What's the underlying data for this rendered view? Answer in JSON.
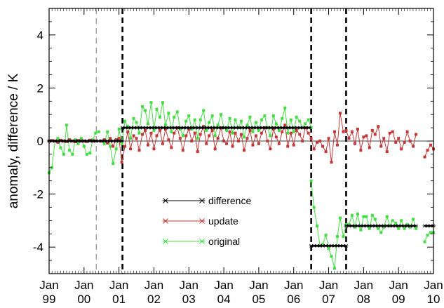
{
  "chart_data": {
    "type": "line",
    "title": "",
    "xlabel": "",
    "ylabel": "anomaly, difference / K",
    "xlim": [
      1999.0,
      2010.0
    ],
    "ylim": [
      -5,
      5
    ],
    "y_ticks": [
      4,
      2,
      0,
      -2,
      -4
    ],
    "y_tick_labels": [
      "4",
      "2",
      "0",
      "-2",
      "-4"
    ],
    "x_ticks": [
      1999,
      2000,
      2001,
      2002,
      2003,
      2004,
      2005,
      2006,
      2007,
      2008,
      2009,
      2010
    ],
    "x_tick_labels": [
      [
        "Jan",
        "99"
      ],
      [
        "Jan",
        "00"
      ],
      [
        "Jan",
        "01"
      ],
      [
        "Jan",
        "02"
      ],
      [
        "Jan",
        "03"
      ],
      [
        "Jan",
        "04"
      ],
      [
        "Jan",
        "05"
      ],
      [
        "Jan",
        "06"
      ],
      [
        "Jan",
        "07"
      ],
      [
        "Jan",
        "08"
      ],
      [
        "Jan",
        "09"
      ],
      [
        "Jan",
        "10"
      ]
    ],
    "grid": false,
    "legend_position": "lower-center",
    "colors": {
      "difference": "#000000",
      "update": "#c03838",
      "original": "#44dd44",
      "break_line": "#000000",
      "dashed_ref": "#999999"
    },
    "vertical_lines": [
      {
        "x": 2000.35,
        "style": "dashed",
        "color": "#999999"
      },
      {
        "x": 2001.1,
        "style": "dashed-bold",
        "color": "#000000"
      },
      {
        "x": 2006.5,
        "style": "dashed-bold",
        "color": "#000000"
      },
      {
        "x": 2007.5,
        "style": "dashed-bold",
        "color": "#000000"
      }
    ],
    "series": [
      {
        "name": "difference",
        "segments": [
          {
            "x": [
              1999.0,
              2001.1
            ],
            "y": [
              0.0,
              0.0
            ]
          },
          {
            "x": [
              2001.1,
              2006.5
            ],
            "y": [
              0.5,
              0.5
            ]
          },
          {
            "x": [
              2006.5,
              2007.5
            ],
            "y": [
              -3.95,
              -3.95
            ]
          },
          {
            "x": [
              2007.5,
              2009.5
            ],
            "y": [
              -3.2,
              -3.2
            ]
          },
          {
            "x": [
              2009.75,
              2010.0
            ],
            "y": [
              -3.2,
              -3.2
            ]
          }
        ]
      },
      {
        "name": "update",
        "segments": [
          {
            "x": [
              1999.0,
              1999.08,
              1999.17,
              1999.25,
              1999.33,
              1999.42,
              1999.5,
              1999.58,
              1999.67,
              1999.75,
              1999.83,
              1999.92,
              2000.0,
              2000.08,
              2000.17,
              2000.25,
              2000.33
            ],
            "y": [
              0.0,
              0.02,
              0.0,
              -0.05,
              0.03,
              0.0,
              -0.02,
              0.05,
              0.0,
              -0.03,
              0.02,
              0.0,
              0.0,
              -0.02,
              0.03,
              0.0,
              0.0
            ]
          },
          {
            "x": [
              2000.5,
              2000.58,
              2000.67,
              2000.75,
              2000.83,
              2000.92,
              2001.0,
              2001.08,
              2001.17,
              2001.25,
              2001.33,
              2001.42,
              2001.5,
              2001.58,
              2001.67,
              2001.75,
              2001.83,
              2001.92,
              2002.0,
              2002.08,
              2002.17,
              2002.25,
              2002.33,
              2002.42,
              2002.5,
              2002.58,
              2002.67,
              2002.75,
              2002.83,
              2002.92,
              2003.0,
              2003.08,
              2003.17,
              2003.25,
              2003.33,
              2003.42,
              2003.5,
              2003.58,
              2003.67,
              2003.75,
              2003.83,
              2003.92,
              2004.0,
              2004.08,
              2004.17,
              2004.25,
              2004.33,
              2004.42,
              2004.5,
              2004.58,
              2004.67,
              2004.75,
              2004.83,
              2004.92,
              2005.0,
              2005.08,
              2005.17,
              2005.25,
              2005.33,
              2005.42,
              2005.5,
              2005.58,
              2005.67,
              2005.75,
              2005.83,
              2005.92,
              2006.0,
              2006.08,
              2006.17,
              2006.25,
              2006.33,
              2006.42,
              2006.5,
              2006.58,
              2006.67,
              2006.75,
              2006.83,
              2006.92,
              2007.0,
              2007.08,
              2007.17,
              2007.25,
              2007.33,
              2007.42
            ],
            "y": [
              0.0,
              0.05,
              -0.08,
              0.1,
              -0.2,
              0.05,
              0.1,
              -0.8,
              -0.2,
              0.35,
              -0.3,
              0.2,
              0.1,
              -0.35,
              0.25,
              0.4,
              -0.15,
              0.3,
              -0.3,
              0.2,
              0.4,
              -0.1,
              0.45,
              0.05,
              -0.25,
              0.3,
              0.5,
              0.1,
              -0.35,
              0.2,
              0.45,
              0.0,
              0.3,
              -0.4,
              0.25,
              0.55,
              -0.1,
              0.2,
              0.4,
              -0.3,
              0.1,
              0.5,
              0.0,
              -0.1,
              0.35,
              -0.2,
              0.3,
              0.0,
              0.25,
              -0.35,
              0.1,
              0.4,
              -0.15,
              0.2,
              -0.1,
              0.3,
              0.5,
              0.0,
              -0.3,
              0.45,
              0.15,
              -0.1,
              0.35,
              0.6,
              -0.2,
              0.3,
              -0.15,
              0.4,
              0.25,
              0.0,
              0.5,
              0.3,
              0.1,
              -0.3,
              -0.05,
              0.0,
              -0.2,
              -0.4,
              0.1,
              -0.8,
              0.35,
              -0.15,
              1.05,
              0.35
            ]
          },
          {
            "x": [
              2007.5,
              2007.58,
              2007.67,
              2007.75,
              2007.83,
              2007.92,
              2008.0,
              2008.08,
              2008.17,
              2008.25,
              2008.33,
              2008.42,
              2008.5,
              2008.58,
              2008.67,
              2008.75,
              2008.83,
              2008.92,
              2009.0,
              2009.08,
              2009.17,
              2009.25,
              2009.33,
              2009.42,
              2009.5
            ],
            "y": [
              0.4,
              0.1,
              0.35,
              -0.1,
              0.45,
              -0.35,
              0.15,
              0.2,
              -0.25,
              0.4,
              0.25,
              0.55,
              -0.2,
              0.1,
              -0.4,
              0.3,
              0.35,
              -0.05,
              0.1,
              -0.3,
              -0.05,
              0.35,
              0.0,
              -0.2,
              0.25
            ]
          },
          {
            "x": [
              2009.75,
              2009.83,
              2009.92,
              2010.0
            ],
            "y": [
              -0.6,
              -0.35,
              -0.15,
              -0.3
            ]
          }
        ]
      },
      {
        "name": "original",
        "segments": [
          {
            "x": [
              1999.0,
              1999.08,
              1999.17,
              1999.25,
              1999.33,
              1999.42,
              1999.5,
              1999.58,
              1999.67,
              1999.75,
              1999.83,
              1999.92,
              2000.0,
              2000.08,
              2000.17,
              2000.25,
              2000.33,
              2000.42
            ],
            "y": [
              -1.2,
              -1.0,
              0.0,
              0.1,
              -0.25,
              -0.5,
              0.6,
              -0.35,
              -0.5,
              0.05,
              -0.1,
              0.1,
              -0.2,
              -0.5,
              -0.45,
              0.05,
              0.3,
              0.35
            ]
          },
          {
            "x": [
              2000.5,
              2000.58,
              2000.67,
              2000.75,
              2000.83,
              2000.92,
              2001.0,
              2001.08,
              2001.17,
              2001.25,
              2001.33,
              2001.42,
              2001.5,
              2001.58,
              2001.67,
              2001.75,
              2001.83,
              2001.92,
              2002.0,
              2002.08,
              2002.17,
              2002.25,
              2002.33,
              2002.42,
              2002.5,
              2002.58,
              2002.67,
              2002.75,
              2002.83,
              2002.92,
              2003.0,
              2003.08,
              2003.17,
              2003.25,
              2003.33,
              2003.42,
              2003.5,
              2003.58,
              2003.67,
              2003.75,
              2003.83,
              2003.92,
              2004.0,
              2004.08,
              2004.17,
              2004.25,
              2004.33,
              2004.42,
              2004.5,
              2004.58,
              2004.67,
              2004.75,
              2004.83,
              2004.92,
              2005.0,
              2005.08,
              2005.17,
              2005.25,
              2005.33,
              2005.42,
              2005.5,
              2005.58,
              2005.67,
              2005.75,
              2005.83,
              2005.92,
              2006.0,
              2006.08,
              2006.17,
              2006.25,
              2006.33,
              2006.42,
              2006.5
            ],
            "y": [
              0.0,
              -0.1,
              0.35,
              -0.2,
              -0.85,
              -0.3,
              0.45,
              -0.1,
              0.75,
              0.55,
              0.1,
              0.85,
              0.7,
              0.3,
              1.3,
              1.15,
              0.65,
              1.45,
              0.4,
              1.2,
              0.9,
              1.45,
              0.6,
              1.05,
              0.35,
              0.9,
              1.1,
              0.45,
              0.2,
              0.75,
              0.95,
              0.45,
              0.8,
              0.1,
              0.8,
              1.15,
              0.4,
              0.7,
              0.95,
              0.2,
              0.6,
              1.0,
              0.5,
              0.4,
              0.85,
              0.3,
              0.8,
              0.5,
              0.75,
              0.15,
              0.6,
              0.9,
              0.35,
              0.7,
              0.4,
              0.8,
              0.95,
              0.5,
              0.2,
              0.95,
              0.65,
              0.4,
              0.85,
              1.25,
              0.3,
              0.8,
              0.35,
              0.9,
              0.75,
              0.5,
              0.65,
              0.8,
              0.5
            ]
          },
          {
            "x": [
              2006.5,
              2006.58,
              2006.67,
              2006.75,
              2006.83,
              2006.92,
              2007.0,
              2007.08,
              2007.17,
              2007.25,
              2007.33,
              2007.42,
              2007.5
            ],
            "y": [
              -1.5,
              -2.5,
              -3.2,
              -3.95,
              -3.9,
              -3.55,
              -4.05,
              -4.35,
              -4.8,
              -3.6,
              -2.9,
              -3.6,
              -3.15
            ]
          },
          {
            "x": [
              2007.58,
              2007.67,
              2007.75,
              2007.83,
              2007.92,
              2008.0,
              2008.08,
              2008.17,
              2008.25,
              2008.33,
              2008.42,
              2008.5,
              2008.58,
              2008.67,
              2008.75,
              2008.83,
              2008.92,
              2009.0,
              2009.08,
              2009.17,
              2009.25,
              2009.33,
              2009.42,
              2009.5
            ],
            "y": [
              -3.15,
              -2.8,
              -3.25,
              -2.75,
              -3.35,
              -2.85,
              -2.85,
              -3.3,
              -2.8,
              -2.95,
              -3.3,
              -3.45,
              -3.25,
              -2.85,
              -3.2,
              -3.0,
              -3.1,
              -3.3,
              -3.0,
              -3.3,
              -3.15,
              -3.25,
              -2.95,
              -3.3
            ]
          },
          {
            "x": [
              2009.75,
              2009.83,
              2009.92,
              2010.0
            ],
            "y": [
              -3.8,
              -3.55,
              -3.45,
              -3.45
            ]
          }
        ]
      }
    ],
    "legend": [
      {
        "label": "difference",
        "color": "#000000"
      },
      {
        "label": "update",
        "color": "#c03838"
      },
      {
        "label": "original",
        "color": "#44dd44"
      }
    ]
  }
}
